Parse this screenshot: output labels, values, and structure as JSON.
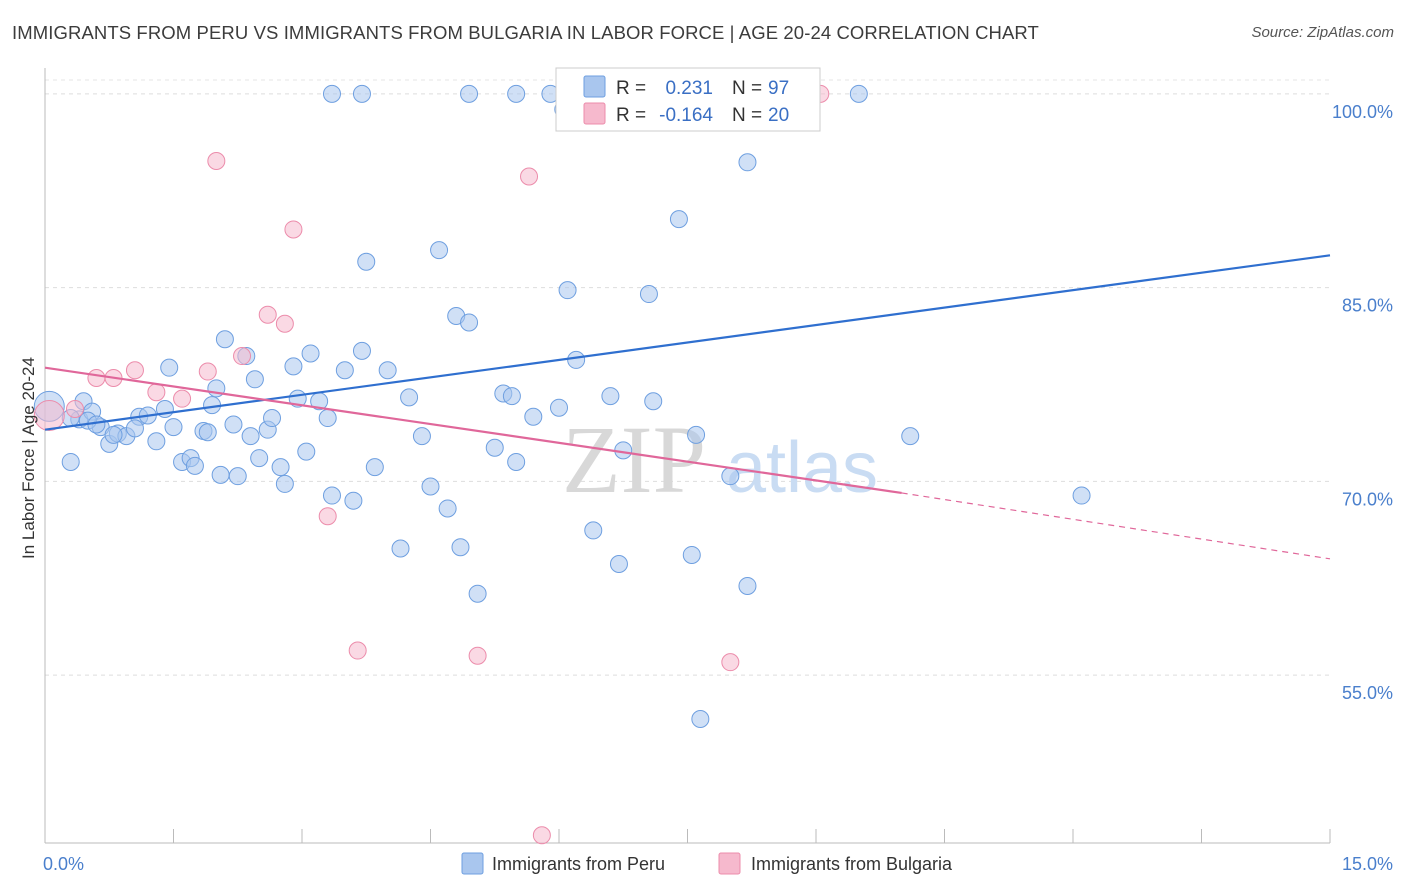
{
  "title": "IMMIGRANTS FROM PERU VS IMMIGRANTS FROM BULGARIA IN LABOR FORCE | AGE 20-24 CORRELATION CHART",
  "source": "Source: ZipAtlas.com",
  "watermark": {
    "zip": "ZIP",
    "atlas": "atlas"
  },
  "chart_data": {
    "type": "scatter",
    "ylabel": "In Labor Force | Age 20-24",
    "xlim": [
      0,
      15
    ],
    "ylim": [
      42,
      102
    ],
    "x_tick_labels": [
      {
        "value": 0,
        "label": "0.0%"
      },
      {
        "value": 15,
        "label": "15.0%"
      }
    ],
    "y_tick_labels": [
      {
        "value": 100,
        "label": "100.0%"
      },
      {
        "value": 85,
        "label": "85.0%"
      },
      {
        "value": 70,
        "label": "70.0%"
      },
      {
        "value": 55,
        "label": "55.0%"
      }
    ],
    "grid": true,
    "legend_position": "bottom",
    "stats": [
      {
        "series": "Immigrants from Peru",
        "r_label": "R =",
        "r_value": "0.231",
        "n_label": "N =",
        "n_value": "97"
      },
      {
        "series": "Immigrants from Bulgaria",
        "r_label": "R =",
        "r_value": "-0.164",
        "n_label": "N =",
        "n_value": "20"
      }
    ],
    "series": [
      {
        "name": "Immigrants from Peru",
        "color": "#a9c6ee",
        "stroke": "#6e9fe0",
        "trend_color": "#2f6fcf",
        "trend": {
          "x0": 0,
          "y0": 74,
          "x1": 15,
          "y1": 87.5
        },
        "points": [
          [
            0.05,
            75.8,
            2
          ],
          [
            0.4,
            74.8,
            1
          ],
          [
            0.45,
            76.2,
            1
          ],
          [
            0.3,
            71.5,
            1
          ],
          [
            0.55,
            75.4,
            1
          ],
          [
            0.65,
            74.2,
            1
          ],
          [
            0.75,
            72.9,
            1
          ],
          [
            0.85,
            73.7,
            1
          ],
          [
            0.95,
            73.5,
            1
          ],
          [
            1.1,
            75.0,
            1
          ],
          [
            1.3,
            73.1,
            1
          ],
          [
            1.4,
            75.6,
            1
          ],
          [
            1.5,
            74.2,
            1
          ],
          [
            1.45,
            78.8,
            1
          ],
          [
            1.6,
            71.5,
            1
          ],
          [
            1.7,
            71.8,
            1
          ],
          [
            1.75,
            71.2,
            1
          ],
          [
            1.85,
            73.9,
            1
          ],
          [
            1.9,
            73.8,
            1
          ],
          [
            1.95,
            75.9,
            1
          ],
          [
            2.0,
            77.2,
            1
          ],
          [
            2.05,
            70.5,
            1
          ],
          [
            2.1,
            81.0,
            1
          ],
          [
            2.2,
            74.4,
            1
          ],
          [
            2.25,
            70.4,
            1
          ],
          [
            2.35,
            79.7,
            1
          ],
          [
            2.4,
            73.5,
            1
          ],
          [
            2.45,
            77.9,
            1
          ],
          [
            2.5,
            71.8,
            1
          ],
          [
            2.6,
            74.0,
            1
          ],
          [
            2.65,
            74.9,
            1
          ],
          [
            2.75,
            71.1,
            1
          ],
          [
            2.8,
            69.8,
            1
          ],
          [
            2.9,
            78.9,
            1
          ],
          [
            2.95,
            76.4,
            1
          ],
          [
            3.05,
            72.3,
            1
          ],
          [
            3.1,
            79.9,
            1
          ],
          [
            3.2,
            76.2,
            1
          ],
          [
            3.3,
            74.9,
            1
          ],
          [
            3.35,
            68.9,
            1
          ],
          [
            3.5,
            78.6,
            1
          ],
          [
            3.6,
            68.5,
            1
          ],
          [
            3.7,
            80.1,
            1
          ],
          [
            3.75,
            87.0,
            1
          ],
          [
            3.85,
            71.1,
            1
          ],
          [
            4.0,
            78.6,
            1
          ],
          [
            4.15,
            64.8,
            1
          ],
          [
            4.25,
            76.5,
            1
          ],
          [
            4.4,
            73.5,
            1
          ],
          [
            4.5,
            69.6,
            1
          ],
          [
            4.6,
            87.9,
            1
          ],
          [
            4.7,
            67.9,
            1
          ],
          [
            4.8,
            82.8,
            1
          ],
          [
            4.85,
            64.9,
            1
          ],
          [
            4.95,
            82.3,
            1
          ],
          [
            5.05,
            61.3,
            1
          ],
          [
            5.25,
            72.6,
            1
          ],
          [
            5.35,
            76.8,
            1
          ],
          [
            5.45,
            76.6,
            1
          ],
          [
            5.5,
            71.5,
            1
          ],
          [
            5.7,
            75.0,
            1
          ],
          [
            6.0,
            75.7,
            1
          ],
          [
            6.1,
            84.8,
            1
          ],
          [
            6.2,
            79.4,
            1
          ],
          [
            6.4,
            66.2,
            1
          ],
          [
            6.6,
            76.6,
            1
          ],
          [
            6.75,
            72.4,
            1
          ],
          [
            6.7,
            63.6,
            1
          ],
          [
            7.05,
            84.5,
            1
          ],
          [
            7.1,
            76.2,
            1
          ],
          [
            7.4,
            90.3,
            1
          ],
          [
            7.55,
            64.3,
            1
          ],
          [
            7.6,
            73.6,
            1
          ],
          [
            8.0,
            70.4,
            1
          ],
          [
            8.2,
            94.7,
            1
          ],
          [
            8.2,
            61.9,
            1
          ],
          [
            7.65,
            51.6,
            1
          ],
          [
            10.1,
            73.5,
            1
          ],
          [
            12.1,
            68.9,
            1
          ],
          [
            3.35,
            100,
            1
          ],
          [
            3.7,
            100,
            1
          ],
          [
            4.95,
            100,
            1
          ],
          [
            5.5,
            100,
            1
          ],
          [
            5.9,
            100,
            1
          ],
          [
            6.05,
            98.8,
            1
          ],
          [
            6.45,
            100,
            1
          ],
          [
            6.5,
            97.8,
            1
          ],
          [
            7.35,
            100,
            1
          ],
          [
            8.5,
            100,
            1
          ],
          [
            8.8,
            100,
            1
          ],
          [
            9.5,
            100,
            1
          ],
          [
            0.3,
            74.9,
            1
          ],
          [
            0.5,
            74.7,
            1
          ],
          [
            0.6,
            74.4,
            1
          ],
          [
            0.8,
            73.6,
            1
          ],
          [
            1.2,
            75.1,
            1
          ],
          [
            1.05,
            74.1,
            1
          ]
        ]
      },
      {
        "name": "Immigrants from Bulgaria",
        "color": "#f6b9cd",
        "stroke": "#ec8cab",
        "trend_color": "#e0679a",
        "trend": {
          "x0": 0,
          "y0": 78.8,
          "x1": 10,
          "y1": 69.1,
          "dash_x1": 15,
          "dash_y1": 64.0
        },
        "points": [
          [
            0.05,
            75.1,
            2
          ],
          [
            0.35,
            75.6,
            1
          ],
          [
            0.6,
            78.0,
            1
          ],
          [
            0.8,
            78.0,
            1
          ],
          [
            1.05,
            78.6,
            1
          ],
          [
            1.3,
            76.9,
            1
          ],
          [
            1.6,
            76.4,
            1
          ],
          [
            1.9,
            78.5,
            1
          ],
          [
            2.0,
            94.8,
            1
          ],
          [
            2.3,
            79.7,
            1
          ],
          [
            2.6,
            82.9,
            1
          ],
          [
            2.8,
            82.2,
            1
          ],
          [
            2.9,
            89.5,
            1
          ],
          [
            3.3,
            67.3,
            1
          ],
          [
            3.65,
            56.9,
            1
          ],
          [
            5.05,
            56.5,
            1
          ],
          [
            5.65,
            93.6,
            1
          ],
          [
            5.8,
            42.6,
            1
          ],
          [
            8.0,
            56.0,
            1
          ],
          [
            9.05,
            100,
            1
          ]
        ]
      }
    ]
  }
}
